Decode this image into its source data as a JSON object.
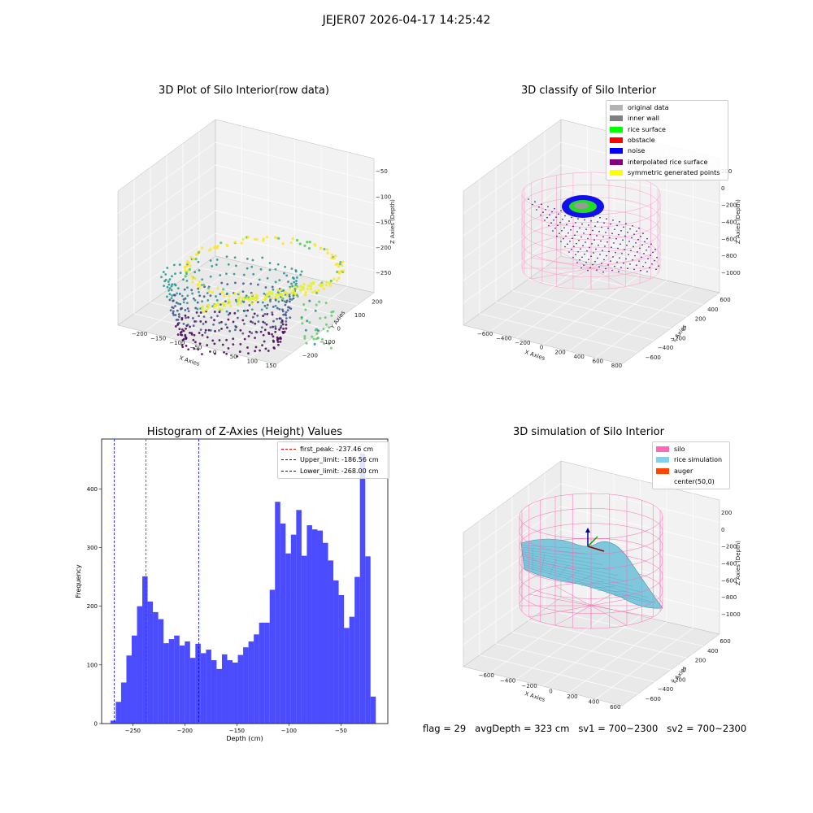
{
  "figure": {
    "suptitle": "JEJER07 2026-04-17 14:25:42",
    "footer": {
      "flag": "flag = 29",
      "avg_depth": "avgDepth = 323 cm",
      "sv1": "sv1 = 700~2300",
      "sv2": "sv2 = 700~2300"
    }
  },
  "panels": {
    "raw": {
      "title": "3D Plot of Silo Interior(row data)",
      "xlabel": "X Axies",
      "ylabel": "Y Axies",
      "zlabel": "Z Axies (Depth)",
      "xticks": [
        "−200",
        "−150",
        "−100",
        "−50",
        "0",
        "50",
        "100",
        "150"
      ],
      "yticks": [
        "200",
        "100",
        "0",
        "−100",
        "−200"
      ],
      "zticks": [
        "−50",
        "−100",
        "−150",
        "−200",
        "−250"
      ]
    },
    "classify": {
      "title": "3D classify of Silo Interior",
      "xlabel": "X Axies",
      "ylabel": "Y Axies",
      "zlabel": "Z Axies (Depth)",
      "xticks": [
        "−600",
        "−400",
        "−200",
        "0",
        "200",
        "400",
        "600",
        "800"
      ],
      "yticks": [
        "600",
        "400",
        "200",
        "0",
        "−200",
        "−400",
        "−600"
      ],
      "zticks": [
        "200",
        "0",
        "−200",
        "−400",
        "−600",
        "−800",
        "−1000"
      ],
      "legend": [
        {
          "label": "original data",
          "color": "#b3b3b3"
        },
        {
          "label": "inner wall",
          "color": "#808080"
        },
        {
          "label": "rice surface",
          "color": "#00ff00"
        },
        {
          "label": "obstacle",
          "color": "#ff0000"
        },
        {
          "label": "noise",
          "color": "#0000ff"
        },
        {
          "label": "interpolated rice surface",
          "color": "#800080"
        },
        {
          "label": "symmetric generated points",
          "color": "#ffff00"
        }
      ]
    },
    "simulation": {
      "title": "3D simulation of Silo Interior",
      "xlabel": "X Axies",
      "ylabel": "Y Axies",
      "zlabel": "Z Axies (Depth)",
      "xticks": [
        "−600",
        "−400",
        "−200",
        "0",
        "200",
        "400",
        "600"
      ],
      "yticks": [
        "600",
        "400",
        "200",
        "0",
        "−200",
        "−400",
        "−600"
      ],
      "zticks": [
        "200",
        "0",
        "−200",
        "−400",
        "−600",
        "−800",
        "−1000"
      ],
      "legend": [
        {
          "label": "silo",
          "color": "#ff69b4"
        },
        {
          "label": "rice simulation",
          "color": "#87ceeb"
        },
        {
          "label": "auger",
          "color": "#ff4500"
        },
        {
          "label": "center(50,0)",
          "color": "transparent"
        }
      ]
    }
  },
  "chart_data": {
    "type": "bar",
    "title": "Histogram of Z-Axies (Height) Values",
    "xlabel": "Depth (cm)",
    "ylabel": "Frequency",
    "xlim": [
      -280,
      -5
    ],
    "ylim": [
      0,
      485
    ],
    "xticks": [
      -250,
      -200,
      -150,
      -100,
      -50
    ],
    "xtick_labels": [
      "−250",
      "−200",
      "−150",
      "−100",
      "−50"
    ],
    "yticks": [
      0,
      100,
      200,
      300,
      400
    ],
    "bar_color": "#0000ff",
    "bin_start": -271.5,
    "bin_width": 5.1,
    "values": [
      5,
      37,
      70,
      116,
      150,
      200,
      251,
      208,
      190,
      178,
      137,
      144,
      150,
      133,
      140,
      112,
      136,
      120,
      126,
      108,
      93,
      118,
      108,
      104,
      117,
      130,
      140,
      152,
      172,
      172,
      228,
      378,
      341,
      290,
      322,
      364,
      286,
      338,
      331,
      329,
      308,
      278,
      244,
      219,
      163,
      182,
      250,
      460,
      285,
      46
    ],
    "reference_lines": [
      {
        "label": "first_peak: -237.46 cm",
        "x": -237.46,
        "color": "#ff0000"
      },
      {
        "label": "Upper_limit: -186.56 cm",
        "x": -186.56,
        "color": "#0000ff"
      },
      {
        "label": "Lower_limit: -268.00 cm",
        "x": -268.0,
        "color": "#0000ff"
      }
    ]
  }
}
